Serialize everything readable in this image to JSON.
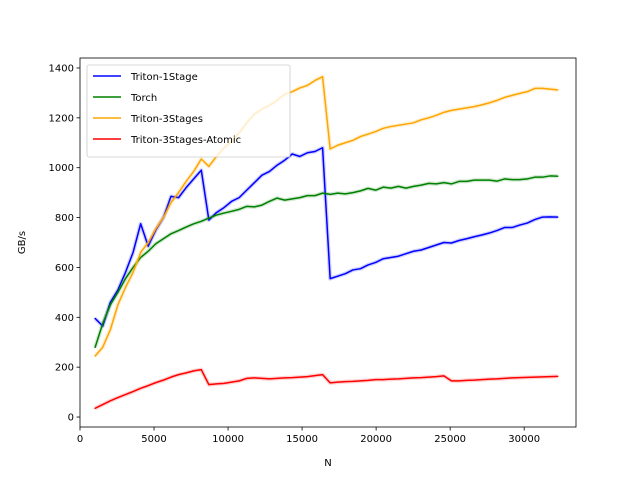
{
  "chart_data": {
    "type": "line",
    "xlabel": "N",
    "ylabel": "GB/s",
    "xlim": [
      0,
      33500
    ],
    "ylim": [
      -40,
      1440
    ],
    "xticks": [
      0,
      5000,
      10000,
      15000,
      20000,
      25000,
      30000
    ],
    "yticks": [
      0,
      200,
      400,
      600,
      800,
      1000,
      1200,
      1400
    ],
    "grid": false,
    "legend_position": "top-left",
    "series": [
      {
        "name": "Triton-1Stage",
        "color": "#0000ff",
        "x": [
          1024,
          1536,
          2048,
          2560,
          3072,
          3584,
          4096,
          4608,
          5120,
          5632,
          6144,
          6656,
          7168,
          7680,
          8192,
          8704,
          9216,
          9728,
          10240,
          10752,
          11264,
          11776,
          12288,
          12800,
          13312,
          13824,
          14336,
          14848,
          15360,
          15872,
          16384,
          16896,
          17408,
          17920,
          18432,
          18944,
          19456,
          19968,
          20480,
          20992,
          21504,
          22016,
          22528,
          23040,
          23552,
          24064,
          24576,
          25088,
          25600,
          26112,
          26624,
          27136,
          27648,
          28160,
          28672,
          29184,
          29696,
          30208,
          30720,
          31232,
          31744,
          32256
        ],
        "y": [
          395,
          365,
          460,
          510,
          580,
          660,
          775,
          685,
          750,
          800,
          885,
          880,
          920,
          955,
          990,
          790,
          820,
          840,
          865,
          880,
          910,
          940,
          970,
          985,
          1010,
          1030,
          1055,
          1045,
          1060,
          1065,
          1080,
          555,
          565,
          575,
          590,
          595,
          610,
          620,
          635,
          640,
          645,
          655,
          665,
          670,
          680,
          690,
          700,
          698,
          708,
          715,
          723,
          730,
          738,
          748,
          760,
          760,
          770,
          778,
          792,
          802,
          803,
          802
        ]
      },
      {
        "name": "Torch",
        "color": "#008000",
        "x": [
          1024,
          1536,
          2048,
          2560,
          3072,
          3584,
          4096,
          4608,
          5120,
          5632,
          6144,
          6656,
          7168,
          7680,
          8192,
          8704,
          9216,
          9728,
          10240,
          10752,
          11264,
          11776,
          12288,
          12800,
          13312,
          13824,
          14336,
          14848,
          15360,
          15872,
          16384,
          16896,
          17408,
          17920,
          18432,
          18944,
          19456,
          19968,
          20480,
          20992,
          21504,
          22016,
          22528,
          23040,
          23552,
          24064,
          24576,
          25088,
          25600,
          26112,
          26624,
          27136,
          27648,
          28160,
          28672,
          29184,
          29696,
          30208,
          30720,
          31232,
          31744,
          32256
        ],
        "y": [
          280,
          375,
          450,
          500,
          555,
          600,
          640,
          665,
          695,
          715,
          735,
          748,
          762,
          775,
          785,
          798,
          810,
          818,
          825,
          833,
          845,
          843,
          850,
          865,
          878,
          870,
          875,
          880,
          888,
          888,
          898,
          893,
          898,
          895,
          900,
          907,
          917,
          910,
          922,
          918,
          925,
          918,
          925,
          930,
          937,
          935,
          940,
          935,
          945,
          945,
          950,
          950,
          950,
          946,
          955,
          952,
          952,
          955,
          962,
          962,
          967,
          966
        ]
      },
      {
        "name": "Triton-3Stages",
        "color": "#ffa500",
        "x": [
          1024,
          1536,
          2048,
          2560,
          3072,
          3584,
          4096,
          4608,
          5120,
          5632,
          6144,
          6656,
          7168,
          7680,
          8192,
          8704,
          9216,
          9728,
          10240,
          10752,
          11264,
          11776,
          12288,
          12800,
          13312,
          13824,
          14336,
          14848,
          15360,
          15872,
          16384,
          16896,
          17408,
          17920,
          18432,
          18944,
          19456,
          19968,
          20480,
          20992,
          21504,
          22016,
          22528,
          23040,
          23552,
          24064,
          24576,
          25088,
          25600,
          26112,
          26624,
          27136,
          27648,
          28160,
          28672,
          29184,
          29696,
          30208,
          30720,
          31232,
          31744,
          32256
        ],
        "y": [
          245,
          280,
          350,
          450,
          520,
          580,
          660,
          700,
          755,
          800,
          860,
          900,
          945,
          985,
          1035,
          1005,
          1045,
          1080,
          1105,
          1140,
          1180,
          1215,
          1235,
          1250,
          1270,
          1295,
          1305,
          1320,
          1330,
          1350,
          1365,
          1075,
          1090,
          1100,
          1110,
          1125,
          1135,
          1145,
          1158,
          1165,
          1170,
          1175,
          1180,
          1192,
          1200,
          1210,
          1222,
          1230,
          1235,
          1240,
          1245,
          1252,
          1260,
          1270,
          1282,
          1290,
          1298,
          1305,
          1318,
          1318,
          1315,
          1312
        ]
      },
      {
        "name": "Triton-3Stages-Atomic",
        "color": "#ff0000",
        "x": [
          1024,
          1536,
          2048,
          2560,
          3072,
          3584,
          4096,
          4608,
          5120,
          5632,
          6144,
          6656,
          7168,
          7680,
          8192,
          8704,
          9216,
          9728,
          10240,
          10752,
          11264,
          11776,
          12288,
          12800,
          13312,
          13824,
          14336,
          14848,
          15360,
          15872,
          16384,
          16896,
          17408,
          17920,
          18432,
          18944,
          19456,
          19968,
          20480,
          20992,
          21504,
          22016,
          22528,
          23040,
          23552,
          24064,
          24576,
          25088,
          25600,
          26112,
          26624,
          27136,
          27648,
          28160,
          28672,
          29184,
          29696,
          30208,
          30720,
          31232,
          31744,
          32256
        ],
        "y": [
          35,
          50,
          65,
          78,
          90,
          102,
          115,
          126,
          138,
          148,
          160,
          170,
          177,
          185,
          190,
          130,
          133,
          135,
          140,
          145,
          155,
          157,
          155,
          153,
          155,
          157,
          158,
          160,
          162,
          166,
          170,
          137,
          140,
          142,
          143,
          145,
          147,
          150,
          150,
          152,
          153,
          155,
          157,
          158,
          160,
          162,
          165,
          145,
          145,
          147,
          148,
          150,
          152,
          153,
          155,
          157,
          158,
          159,
          160,
          161,
          162,
          163
        ]
      }
    ]
  }
}
